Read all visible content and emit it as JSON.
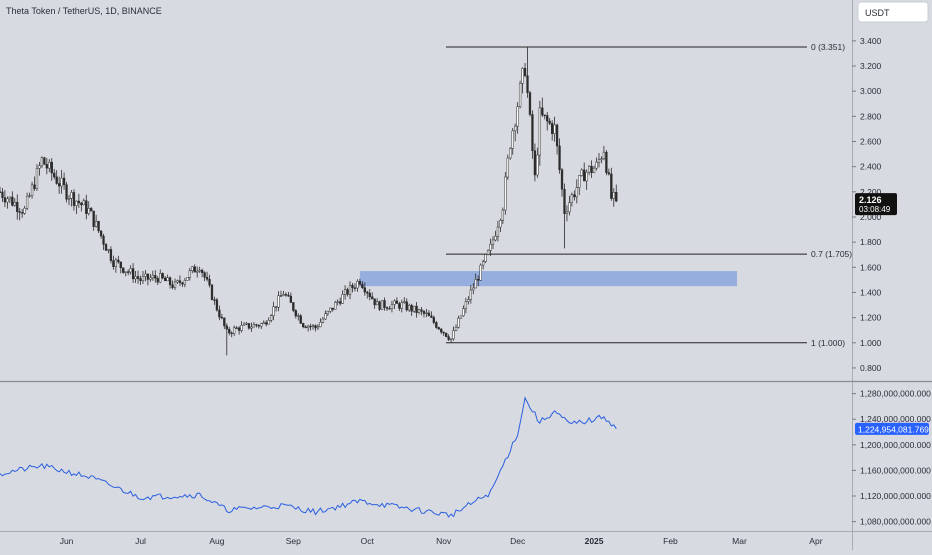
{
  "header": {
    "symbol_title": "Theta Token / TetherUS, 1D, BINANCE"
  },
  "currency_button": "USDT",
  "colors": {
    "background": "#d7dae1",
    "candle": "#2b2b2b",
    "zone": "#8fa8dd",
    "cap_line": "#2a5fe0",
    "cap_label_bg": "#2962ff",
    "price_label_bg": "#111111",
    "fib_line": "#222222",
    "separator": "#8a8d94"
  },
  "price_scale": {
    "ticks": [
      "3.400",
      "3.200",
      "3.000",
      "2.800",
      "2.600",
      "2.400",
      "2.200",
      "2.000",
      "1.800",
      "1.600",
      "1.400",
      "1.200",
      "1.000",
      "0.800"
    ],
    "current_price": "2.126",
    "countdown": "03:08:49"
  },
  "cap_scale": {
    "ticks": [
      "1,280,000,000.000",
      "1,240,000,000.000",
      "1,200,000,000.000",
      "1,160,000,000.000",
      "1,120,000,000.000",
      "1,080,000,000.000"
    ],
    "current_value": "1,224,954,081.769"
  },
  "time_axis": [
    "Jun",
    "Jul",
    "Aug",
    "Sep",
    "Oct",
    "Nov",
    "Dec",
    "2025",
    "Feb",
    "Mar",
    "Apr"
  ],
  "fib_levels": [
    {
      "label": "0 (3.351)",
      "price": 3.351
    },
    {
      "label": "0.7 (1.705)",
      "price": 1.705
    },
    {
      "label": "1 (1.000)",
      "price": 1.0
    }
  ],
  "chart_data": {
    "type": "candlestick",
    "title": "Theta Token / TetherUS, 1D, BINANCE",
    "ylim": [
      0.72,
      3.55
    ],
    "x_ticks": [
      "Jun",
      "Jul",
      "Aug",
      "Sep",
      "Oct",
      "Nov",
      "Dec",
      "2025",
      "Feb",
      "Mar",
      "Apr"
    ],
    "approx_close_path": [
      {
        "date": "2024-05-05",
        "close": 2.2
      },
      {
        "date": "2024-05-15",
        "close": 2.05
      },
      {
        "date": "2024-05-22",
        "close": 2.45
      },
      {
        "date": "2024-06-01",
        "close": 2.2
      },
      {
        "date": "2024-06-10",
        "close": 2.05
      },
      {
        "date": "2024-06-20",
        "close": 1.65
      },
      {
        "date": "2024-07-01",
        "close": 1.5
      },
      {
        "date": "2024-07-08",
        "close": 1.52
      },
      {
        "date": "2024-07-15",
        "close": 1.45
      },
      {
        "date": "2024-07-25",
        "close": 1.62
      },
      {
        "date": "2024-08-05",
        "close": 1.08
      },
      {
        "date": "2024-08-10",
        "close": 1.12
      },
      {
        "date": "2024-08-20",
        "close": 1.15
      },
      {
        "date": "2024-08-28",
        "close": 1.4
      },
      {
        "date": "2024-09-05",
        "close": 1.15
      },
      {
        "date": "2024-09-10",
        "close": 1.12
      },
      {
        "date": "2024-09-20",
        "close": 1.35
      },
      {
        "date": "2024-09-28",
        "close": 1.5
      },
      {
        "date": "2024-10-05",
        "close": 1.3
      },
      {
        "date": "2024-10-15",
        "close": 1.3
      },
      {
        "date": "2024-10-25",
        "close": 1.22
      },
      {
        "date": "2024-11-04",
        "close": 1.03
      },
      {
        "date": "2024-11-12",
        "close": 1.4
      },
      {
        "date": "2024-11-20",
        "close": 1.75
      },
      {
        "date": "2024-11-25",
        "close": 2.1
      },
      {
        "date": "2024-11-28",
        "close": 2.6
      },
      {
        "date": "2024-12-04",
        "close": 3.2
      },
      {
        "date": "2024-12-08",
        "close": 2.3
      },
      {
        "date": "2024-12-10",
        "close": 2.8
      },
      {
        "date": "2024-12-16",
        "close": 2.7
      },
      {
        "date": "2024-12-20",
        "close": 2.05
      },
      {
        "date": "2024-12-28",
        "close": 2.35
      },
      {
        "date": "2025-01-02",
        "close": 2.4
      },
      {
        "date": "2025-01-05",
        "close": 2.55
      },
      {
        "date": "2025-01-08",
        "close": 2.15
      },
      {
        "date": "2025-01-10",
        "close": 2.126
      }
    ],
    "demand_zone": {
      "start": "2024-09-28",
      "end": "2025-02-28",
      "price_low": 1.45,
      "price_high": 1.57
    },
    "fibonacci": [
      {
        "label": "0 (3.351)",
        "price": 3.351
      },
      {
        "label": "0.7 (1.705)",
        "price": 1.705
      },
      {
        "label": "1 (1.000)",
        "price": 1.0
      }
    ],
    "market_cap": {
      "ylim": [
        1070000000,
        1295000000
      ],
      "current": 1224954081.769,
      "approx_path": [
        {
          "date": "2024-05-05",
          "value": 1155000000
        },
        {
          "date": "2024-05-22",
          "value": 1167000000
        },
        {
          "date": "2024-06-10",
          "value": 1150000000
        },
        {
          "date": "2024-07-01",
          "value": 1118000000
        },
        {
          "date": "2024-07-25",
          "value": 1122000000
        },
        {
          "date": "2024-08-05",
          "value": 1098000000
        },
        {
          "date": "2024-08-28",
          "value": 1105000000
        },
        {
          "date": "2024-09-10",
          "value": 1095000000
        },
        {
          "date": "2024-09-28",
          "value": 1112000000
        },
        {
          "date": "2024-10-15",
          "value": 1102000000
        },
        {
          "date": "2024-11-04",
          "value": 1090000000
        },
        {
          "date": "2024-11-20",
          "value": 1125000000
        },
        {
          "date": "2024-12-01",
          "value": 1218000000
        },
        {
          "date": "2024-12-04",
          "value": 1272000000
        },
        {
          "date": "2024-12-10",
          "value": 1235000000
        },
        {
          "date": "2024-12-16",
          "value": 1252000000
        },
        {
          "date": "2024-12-22",
          "value": 1232000000
        },
        {
          "date": "2025-01-02",
          "value": 1240000000
        },
        {
          "date": "2025-01-05",
          "value": 1245000000
        },
        {
          "date": "2025-01-10",
          "value": 1224954081.769
        }
      ]
    }
  }
}
